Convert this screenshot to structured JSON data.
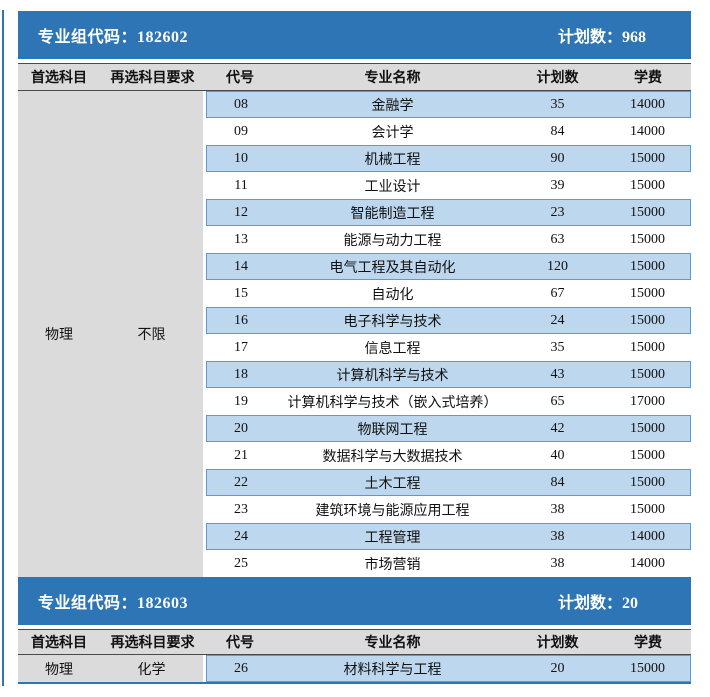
{
  "colors": {
    "bar_blue": "#2E75B6",
    "row_light_blue": "#BDD7EE",
    "row_border_blue": "#5B9BD5",
    "header_gray": "#DBDBDB"
  },
  "columns": [
    "首选科目",
    "再选科目要求",
    "代号",
    "专业名称",
    "计划数",
    "学费"
  ],
  "sections": [
    {
      "group_code_label": "专业组代码：182602",
      "plan_total_label": "计划数：968",
      "first_subject": "物理",
      "second_subject": "不限",
      "rows": [
        {
          "code": "08",
          "major": "金融学",
          "plan": "35",
          "tuition": "14000"
        },
        {
          "code": "09",
          "major": "会计学",
          "plan": "84",
          "tuition": "14000"
        },
        {
          "code": "10",
          "major": "机械工程",
          "plan": "90",
          "tuition": "15000"
        },
        {
          "code": "11",
          "major": "工业设计",
          "plan": "39",
          "tuition": "15000"
        },
        {
          "code": "12",
          "major": "智能制造工程",
          "plan": "23",
          "tuition": "15000"
        },
        {
          "code": "13",
          "major": "能源与动力工程",
          "plan": "63",
          "tuition": "15000"
        },
        {
          "code": "14",
          "major": "电气工程及其自动化",
          "plan": "120",
          "tuition": "15000"
        },
        {
          "code": "15",
          "major": "自动化",
          "plan": "67",
          "tuition": "15000"
        },
        {
          "code": "16",
          "major": "电子科学与技术",
          "plan": "24",
          "tuition": "15000"
        },
        {
          "code": "17",
          "major": "信息工程",
          "plan": "35",
          "tuition": "15000"
        },
        {
          "code": "18",
          "major": "计算机科学与技术",
          "plan": "43",
          "tuition": "15000"
        },
        {
          "code": "19",
          "major": "计算机科学与技术（嵌入式培养）",
          "plan": "65",
          "tuition": "17000"
        },
        {
          "code": "20",
          "major": "物联网工程",
          "plan": "42",
          "tuition": "15000"
        },
        {
          "code": "21",
          "major": "数据科学与大数据技术",
          "plan": "40",
          "tuition": "15000"
        },
        {
          "code": "22",
          "major": "土木工程",
          "plan": "84",
          "tuition": "15000"
        },
        {
          "code": "23",
          "major": "建筑环境与能源应用工程",
          "plan": "38",
          "tuition": "15000"
        },
        {
          "code": "24",
          "major": "工程管理",
          "plan": "38",
          "tuition": "14000"
        },
        {
          "code": "25",
          "major": "市场营销",
          "plan": "38",
          "tuition": "14000"
        }
      ]
    },
    {
      "group_code_label": "专业组代码：182603",
      "plan_total_label": "计划数：20",
      "first_subject": "物理",
      "second_subject": "化学",
      "rows": [
        {
          "code": "26",
          "major": "材料科学与工程",
          "plan": "20",
          "tuition": "15000"
        }
      ]
    }
  ]
}
